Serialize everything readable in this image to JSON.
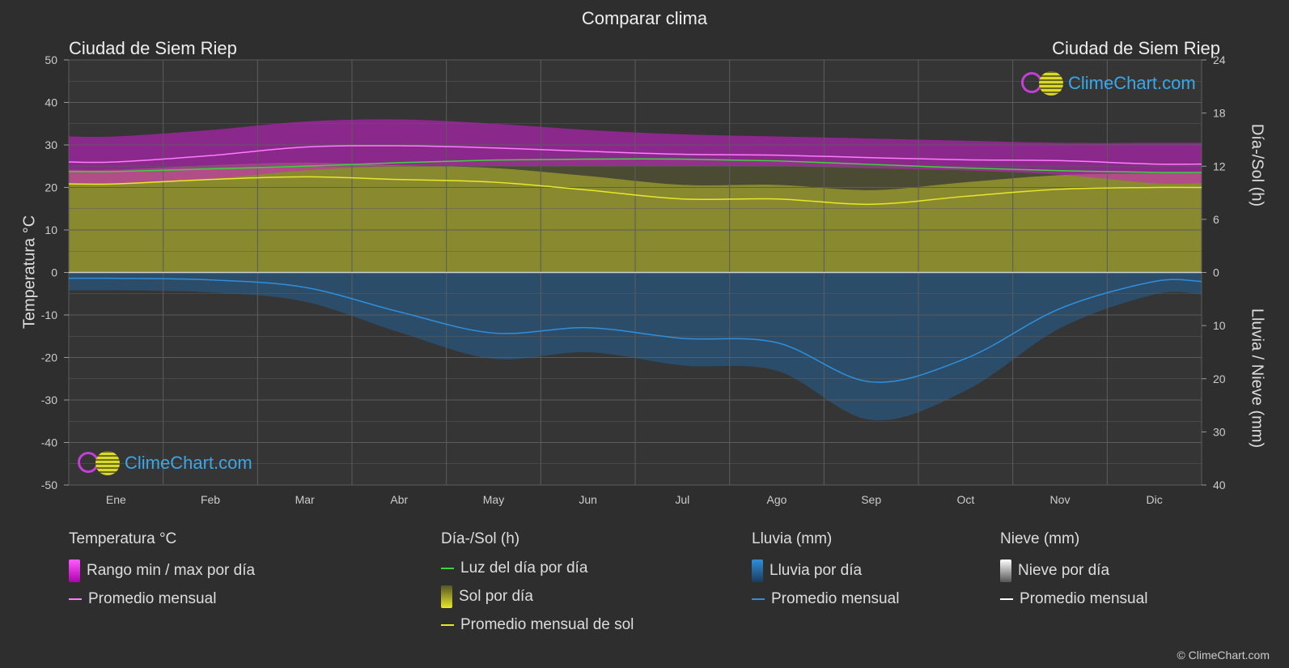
{
  "title": "Comparar clima",
  "location_left": "Ciudad de Siem Riep",
  "location_right": "Ciudad de Siem Riep",
  "axis_left_title": "Temperatura °C",
  "axis_right_top_title": "Día-/Sol (h)",
  "axis_right_bottom_title": "Lluvia / Nieve (mm)",
  "logo_text": "ClimeChart.com",
  "copyright": "© ClimeChart.com",
  "legend": {
    "temp": {
      "head": "Temperatura °C",
      "range": "Rango min / max por día",
      "avg": "Promedio mensual"
    },
    "sun": {
      "head": "Día-/Sol (h)",
      "daylight": "Luz del día por día",
      "sun": "Sol por día",
      "avg": "Promedio mensual de sol"
    },
    "rain": {
      "head": "Lluvia (mm)",
      "rain": "Lluvia por día",
      "avg": "Promedio mensual"
    },
    "snow": {
      "head": "Nieve (mm)",
      "snow": "Nieve por día",
      "avg": "Promedio mensual"
    }
  },
  "colors": {
    "background": "#2e2e2e",
    "temp_range": "#d21ed2",
    "temp_avg": "#ff7bff",
    "daylight": "#3ed43e",
    "sun_fill": "#a6a62e",
    "sun_avg": "#e8e82a",
    "rain_fill": "#1e6aa8",
    "rain_avg": "#2f8fdc",
    "snow_avg": "#ffffff"
  },
  "chart_data": {
    "type": "area",
    "categories": [
      "Ene",
      "Feb",
      "Mar",
      "Abr",
      "May",
      "Jun",
      "Jul",
      "Ago",
      "Sep",
      "Oct",
      "Nov",
      "Dic"
    ],
    "y_left": {
      "label": "Temperatura °C",
      "lim": [
        -50,
        50
      ],
      "ticks": [
        50,
        40,
        30,
        20,
        10,
        0,
        -10,
        -20,
        -30,
        -40,
        -50
      ]
    },
    "y_right_top": {
      "label": "Día-/Sol (h)",
      "lim": [
        0,
        24
      ],
      "ticks": [
        24,
        18,
        12,
        6,
        0
      ]
    },
    "y_right_bottom": {
      "label": "Lluvia / Nieve (mm)",
      "lim": [
        0,
        40
      ],
      "ticks": [
        0,
        10,
        20,
        30,
        40
      ]
    },
    "series": [
      {
        "name": "Promedio mensual",
        "group": "temp_avg",
        "values": [
          26.0,
          27.5,
          29.5,
          29.8,
          29.3,
          28.5,
          27.8,
          27.6,
          27.0,
          26.5,
          26.3,
          25.5
        ]
      },
      {
        "name": "Rango min / max por día",
        "group": "temp_max",
        "values": [
          32,
          33.5,
          35.5,
          36,
          35,
          33.5,
          32.5,
          32,
          31.5,
          31,
          30.5,
          30.5
        ]
      },
      {
        "name": "Rango min / max por día",
        "group": "temp_min",
        "values": [
          21,
          22,
          24,
          25,
          25,
          25,
          25,
          25,
          24.5,
          24,
          23,
          21
        ]
      },
      {
        "name": "Luz del día por día",
        "group": "daylight",
        "values": [
          11.4,
          11.7,
          12.0,
          12.4,
          12.7,
          12.8,
          12.8,
          12.6,
          12.2,
          11.8,
          11.5,
          11.3
        ]
      },
      {
        "name": "Promedio mensual de sol",
        "group": "sun_avg",
        "values": [
          10.0,
          10.5,
          10.8,
          10.5,
          10.2,
          9.3,
          8.3,
          8.3,
          7.7,
          8.6,
          9.4,
          9.6
        ]
      },
      {
        "name": "Promedio mensual",
        "group": "rain_avg",
        "values": [
          1.1,
          1.4,
          2.8,
          7.4,
          11.4,
          10.4,
          12.4,
          13.2,
          20.6,
          16.2,
          6.8,
          1.7
        ]
      }
    ]
  }
}
